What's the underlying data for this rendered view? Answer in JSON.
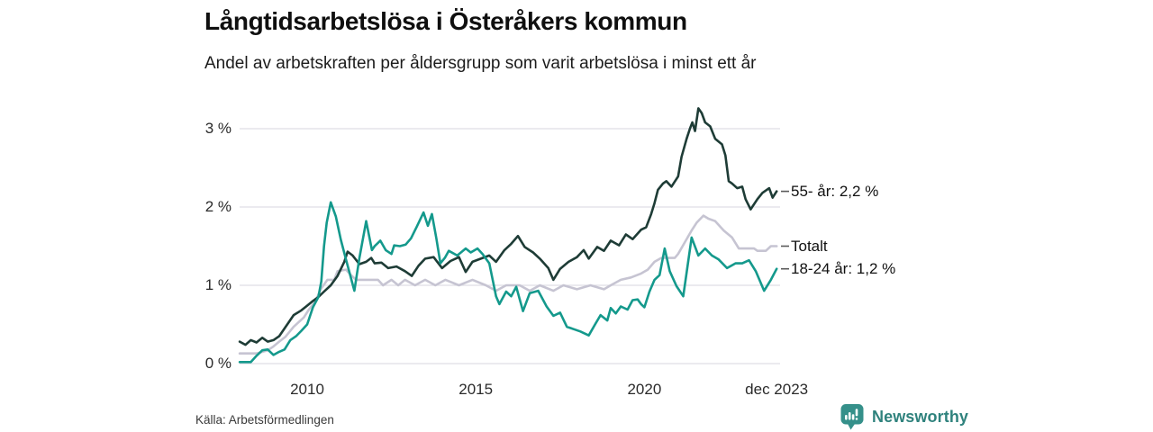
{
  "chart_data": {
    "type": "line",
    "title": "Långtidsarbetslösa i Österåkers kommun",
    "subtitle": "Andel av arbetskraften per åldersgrupp som varit arbetslösa i minst ett år",
    "source": "Källa: Arbetsförmedlingen",
    "grid": "horizontal",
    "legend_position": "right-of-line-ends",
    "x_axis": {
      "range": [
        2008,
        2024.05
      ],
      "ticks": [
        {
          "value": 2010,
          "label": "2010"
        },
        {
          "value": 2015,
          "label": "2015"
        },
        {
          "value": 2020,
          "label": "2020"
        },
        {
          "value": 2023.92,
          "label": "dec 2023"
        }
      ]
    },
    "y_axis": {
      "unit": "%",
      "range": [
        0,
        3.45
      ],
      "ticks": [
        {
          "value": 3,
          "label": "3 %"
        },
        {
          "value": 2,
          "label": "2 %"
        },
        {
          "value": 1,
          "label": "1 %"
        },
        {
          "value": 0,
          "label": "0 %"
        }
      ]
    },
    "colors": {
      "grid": "#dfdee5",
      "legend_dash": "#5a5a5a"
    },
    "series": [
      {
        "name": "55- år",
        "label": "55- år: 2,2 %",
        "end_value": 2.2,
        "color": "#1e3c36",
        "points": [
          [
            2008.0,
            0.28
          ],
          [
            2008.17,
            0.24
          ],
          [
            2008.33,
            0.3
          ],
          [
            2008.5,
            0.27
          ],
          [
            2008.67,
            0.33
          ],
          [
            2008.83,
            0.28
          ],
          [
            2009.0,
            0.3
          ],
          [
            2009.17,
            0.35
          ],
          [
            2009.33,
            0.45
          ],
          [
            2009.6,
            0.62
          ],
          [
            2009.83,
            0.68
          ],
          [
            2010.0,
            0.74
          ],
          [
            2010.17,
            0.8
          ],
          [
            2010.33,
            0.85
          ],
          [
            2010.5,
            0.92
          ],
          [
            2010.7,
            1.0
          ],
          [
            2010.9,
            1.12
          ],
          [
            2011.1,
            1.3
          ],
          [
            2011.2,
            1.43
          ],
          [
            2011.35,
            1.38
          ],
          [
            2011.55,
            1.27
          ],
          [
            2011.75,
            1.3
          ],
          [
            2011.9,
            1.35
          ],
          [
            2012.0,
            1.28
          ],
          [
            2012.2,
            1.29
          ],
          [
            2012.4,
            1.22
          ],
          [
            2012.65,
            1.24
          ],
          [
            2012.9,
            1.18
          ],
          [
            2013.1,
            1.12
          ],
          [
            2013.3,
            1.25
          ],
          [
            2013.5,
            1.34
          ],
          [
            2013.75,
            1.36
          ],
          [
            2014.0,
            1.22
          ],
          [
            2014.25,
            1.31
          ],
          [
            2014.5,
            1.36
          ],
          [
            2014.7,
            1.17
          ],
          [
            2014.9,
            1.3
          ],
          [
            2015.15,
            1.34
          ],
          [
            2015.4,
            1.38
          ],
          [
            2015.6,
            1.3
          ],
          [
            2015.85,
            1.45
          ],
          [
            2016.05,
            1.53
          ],
          [
            2016.25,
            1.63
          ],
          [
            2016.45,
            1.49
          ],
          [
            2016.7,
            1.42
          ],
          [
            2016.9,
            1.34
          ],
          [
            2017.15,
            1.22
          ],
          [
            2017.3,
            1.07
          ],
          [
            2017.5,
            1.21
          ],
          [
            2017.75,
            1.3
          ],
          [
            2018.0,
            1.36
          ],
          [
            2018.2,
            1.45
          ],
          [
            2018.35,
            1.34
          ],
          [
            2018.6,
            1.49
          ],
          [
            2018.8,
            1.44
          ],
          [
            2019.0,
            1.57
          ],
          [
            2019.25,
            1.51
          ],
          [
            2019.45,
            1.65
          ],
          [
            2019.65,
            1.59
          ],
          [
            2019.9,
            1.71
          ],
          [
            2020.05,
            1.74
          ],
          [
            2020.2,
            1.91
          ],
          [
            2020.3,
            2.05
          ],
          [
            2020.4,
            2.22
          ],
          [
            2020.55,
            2.3
          ],
          [
            2020.65,
            2.33
          ],
          [
            2020.8,
            2.26
          ],
          [
            2021.0,
            2.39
          ],
          [
            2021.1,
            2.64
          ],
          [
            2021.25,
            2.87
          ],
          [
            2021.35,
            3.0
          ],
          [
            2021.42,
            3.08
          ],
          [
            2021.5,
            2.97
          ],
          [
            2021.6,
            3.26
          ],
          [
            2021.7,
            3.2
          ],
          [
            2021.8,
            3.08
          ],
          [
            2021.95,
            3.03
          ],
          [
            2022.1,
            2.87
          ],
          [
            2022.3,
            2.8
          ],
          [
            2022.4,
            2.66
          ],
          [
            2022.5,
            2.33
          ],
          [
            2022.6,
            2.3
          ],
          [
            2022.75,
            2.24
          ],
          [
            2022.9,
            2.26
          ],
          [
            2023.0,
            2.1
          ],
          [
            2023.15,
            1.97
          ],
          [
            2023.35,
            2.1
          ],
          [
            2023.5,
            2.18
          ],
          [
            2023.7,
            2.24
          ],
          [
            2023.8,
            2.12
          ],
          [
            2023.92,
            2.2
          ]
        ]
      },
      {
        "name": "Totalt",
        "label": "Totalt",
        "end_value": 1.5,
        "color": "#c6c4d2",
        "points": [
          [
            2008.0,
            0.13
          ],
          [
            2008.5,
            0.13
          ],
          [
            2008.83,
            0.17
          ],
          [
            2009.0,
            0.22
          ],
          [
            2009.17,
            0.28
          ],
          [
            2009.35,
            0.34
          ],
          [
            2009.6,
            0.47
          ],
          [
            2009.9,
            0.59
          ],
          [
            2010.05,
            0.69
          ],
          [
            2010.25,
            0.8
          ],
          [
            2010.4,
            0.95
          ],
          [
            2010.6,
            1.07
          ],
          [
            2010.8,
            1.07
          ],
          [
            2010.9,
            1.18
          ],
          [
            2011.15,
            1.2
          ],
          [
            2011.3,
            1.13
          ],
          [
            2011.45,
            1.07
          ],
          [
            2012.1,
            1.07
          ],
          [
            2012.25,
            1.0
          ],
          [
            2012.5,
            1.07
          ],
          [
            2012.7,
            1.0
          ],
          [
            2012.9,
            1.07
          ],
          [
            2013.2,
            1.0
          ],
          [
            2013.5,
            1.07
          ],
          [
            2013.8,
            1.0
          ],
          [
            2014.1,
            1.07
          ],
          [
            2014.5,
            1.0
          ],
          [
            2014.9,
            1.07
          ],
          [
            2015.3,
            1.0
          ],
          [
            2015.6,
            0.93
          ],
          [
            2015.9,
            1.0
          ],
          [
            2016.3,
            1.0
          ],
          [
            2016.6,
            0.93
          ],
          [
            2016.9,
            1.0
          ],
          [
            2017.3,
            0.93
          ],
          [
            2017.6,
            1.0
          ],
          [
            2018.0,
            0.95
          ],
          [
            2018.4,
            1.0
          ],
          [
            2018.8,
            0.95
          ],
          [
            2019.0,
            1.0
          ],
          [
            2019.3,
            1.07
          ],
          [
            2019.6,
            1.1
          ],
          [
            2019.9,
            1.15
          ],
          [
            2020.1,
            1.2
          ],
          [
            2020.3,
            1.3
          ],
          [
            2020.5,
            1.35
          ],
          [
            2020.9,
            1.35
          ],
          [
            2021.0,
            1.4
          ],
          [
            2021.2,
            1.55
          ],
          [
            2021.4,
            1.7
          ],
          [
            2021.55,
            1.8
          ],
          [
            2021.75,
            1.89
          ],
          [
            2021.9,
            1.85
          ],
          [
            2022.1,
            1.82
          ],
          [
            2022.35,
            1.7
          ],
          [
            2022.6,
            1.61
          ],
          [
            2022.8,
            1.47
          ],
          [
            2023.25,
            1.47
          ],
          [
            2023.35,
            1.44
          ],
          [
            2023.6,
            1.44
          ],
          [
            2023.75,
            1.5
          ],
          [
            2023.92,
            1.5
          ]
        ]
      },
      {
        "name": "18-24 år",
        "label": "18-24 år: 1,2 %",
        "end_value": 1.2,
        "color": "#14998c",
        "points": [
          [
            2008.0,
            0.02
          ],
          [
            2008.33,
            0.02
          ],
          [
            2008.5,
            0.1
          ],
          [
            2008.67,
            0.17
          ],
          [
            2008.83,
            0.18
          ],
          [
            2009.0,
            0.11
          ],
          [
            2009.17,
            0.15
          ],
          [
            2009.33,
            0.18
          ],
          [
            2009.5,
            0.3
          ],
          [
            2009.67,
            0.35
          ],
          [
            2009.83,
            0.42
          ],
          [
            2010.0,
            0.5
          ],
          [
            2010.17,
            0.72
          ],
          [
            2010.33,
            0.85
          ],
          [
            2010.42,
            1.05
          ],
          [
            2010.5,
            1.5
          ],
          [
            2010.58,
            1.8
          ],
          [
            2010.7,
            2.06
          ],
          [
            2010.85,
            1.88
          ],
          [
            2011.0,
            1.58
          ],
          [
            2011.15,
            1.33
          ],
          [
            2011.4,
            0.93
          ],
          [
            2011.55,
            1.35
          ],
          [
            2011.75,
            1.82
          ],
          [
            2011.85,
            1.6
          ],
          [
            2011.92,
            1.45
          ],
          [
            2012.0,
            1.5
          ],
          [
            2012.17,
            1.57
          ],
          [
            2012.33,
            1.45
          ],
          [
            2012.5,
            1.4
          ],
          [
            2012.58,
            1.51
          ],
          [
            2012.75,
            1.5
          ],
          [
            2012.92,
            1.52
          ],
          [
            2013.08,
            1.6
          ],
          [
            2013.25,
            1.75
          ],
          [
            2013.45,
            1.93
          ],
          [
            2013.58,
            1.76
          ],
          [
            2013.7,
            1.91
          ],
          [
            2013.83,
            1.6
          ],
          [
            2013.95,
            1.28
          ],
          [
            2014.08,
            1.35
          ],
          [
            2014.2,
            1.44
          ],
          [
            2014.45,
            1.38
          ],
          [
            2014.7,
            1.47
          ],
          [
            2014.85,
            1.42
          ],
          [
            2015.05,
            1.47
          ],
          [
            2015.2,
            1.4
          ],
          [
            2015.4,
            1.28
          ],
          [
            2015.6,
            0.86
          ],
          [
            2015.7,
            0.76
          ],
          [
            2015.9,
            0.92
          ],
          [
            2016.05,
            0.86
          ],
          [
            2016.2,
            0.98
          ],
          [
            2016.4,
            0.67
          ],
          [
            2016.6,
            0.9
          ],
          [
            2016.85,
            0.93
          ],
          [
            2017.1,
            0.73
          ],
          [
            2017.3,
            0.61
          ],
          [
            2017.5,
            0.65
          ],
          [
            2017.7,
            0.47
          ],
          [
            2017.9,
            0.44
          ],
          [
            2018.1,
            0.41
          ],
          [
            2018.35,
            0.36
          ],
          [
            2018.55,
            0.51
          ],
          [
            2018.7,
            0.62
          ],
          [
            2018.9,
            0.55
          ],
          [
            2019.0,
            0.71
          ],
          [
            2019.15,
            0.64
          ],
          [
            2019.3,
            0.73
          ],
          [
            2019.5,
            0.69
          ],
          [
            2019.65,
            0.81
          ],
          [
            2019.8,
            0.82
          ],
          [
            2019.9,
            0.76
          ],
          [
            2020.0,
            0.72
          ],
          [
            2020.15,
            0.92
          ],
          [
            2020.3,
            1.07
          ],
          [
            2020.45,
            1.13
          ],
          [
            2020.6,
            1.47
          ],
          [
            2020.75,
            1.18
          ],
          [
            2020.95,
            0.99
          ],
          [
            2021.15,
            0.86
          ],
          [
            2021.4,
            1.61
          ],
          [
            2021.6,
            1.38
          ],
          [
            2021.8,
            1.47
          ],
          [
            2022.0,
            1.38
          ],
          [
            2022.2,
            1.33
          ],
          [
            2022.45,
            1.22
          ],
          [
            2022.7,
            1.28
          ],
          [
            2022.9,
            1.28
          ],
          [
            2023.1,
            1.32
          ],
          [
            2023.3,
            1.18
          ],
          [
            2023.55,
            0.93
          ],
          [
            2023.75,
            1.07
          ],
          [
            2023.92,
            1.21
          ]
        ]
      }
    ]
  },
  "footer": {
    "brand": "Newsworthy",
    "brand_icon": "newsworthy-bars-icon",
    "brand_color": "#2f827d"
  }
}
